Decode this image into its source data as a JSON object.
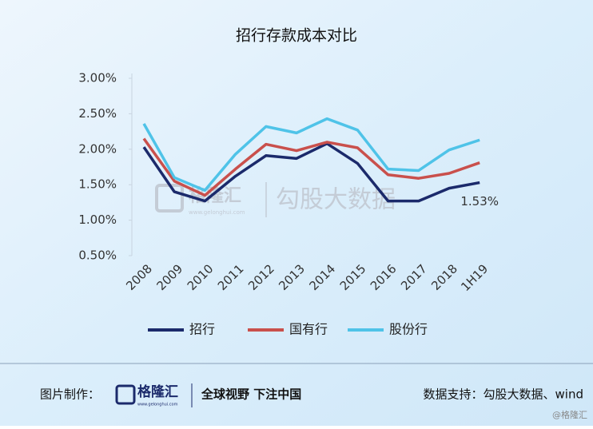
{
  "chart_data": {
    "type": "line",
    "title": "招行存款成本对比",
    "categories": [
      "2008",
      "2009",
      "2010",
      "2011",
      "2012",
      "2013",
      "2014",
      "2015",
      "2016",
      "2017",
      "2018",
      "1H19"
    ],
    "series": [
      {
        "name": "招行",
        "color": "#1b2a6b",
        "values": [
          2.03,
          1.4,
          1.27,
          1.62,
          1.91,
          1.87,
          2.08,
          1.8,
          1.27,
          1.27,
          1.45,
          1.53
        ],
        "value_labels": [
          null,
          null,
          null,
          null,
          null,
          null,
          null,
          null,
          null,
          null,
          null,
          "1.53%"
        ]
      },
      {
        "name": "国有行",
        "color": "#c9504c",
        "values": [
          2.15,
          1.55,
          1.35,
          1.72,
          2.07,
          1.98,
          2.1,
          2.02,
          1.64,
          1.59,
          1.66,
          1.81
        ]
      },
      {
        "name": "股份行",
        "color": "#4fc3e8",
        "values": [
          2.36,
          1.6,
          1.42,
          1.93,
          2.32,
          2.23,
          2.43,
          2.27,
          1.72,
          1.7,
          1.99,
          2.13
        ]
      }
    ],
    "ylim": [
      0.5,
      3.0
    ],
    "yticks": [
      {
        "value": 0.5,
        "label": "0.50%"
      },
      {
        "value": 1.0,
        "label": "1.00%"
      },
      {
        "value": 1.5,
        "label": "1.50%"
      },
      {
        "value": 2.0,
        "label": "2.00%"
      },
      {
        "value": 2.5,
        "label": "2.50%"
      },
      {
        "value": 3.0,
        "label": "3.00%"
      }
    ],
    "grid": false,
    "legend": "bottom"
  },
  "watermark": {
    "brand": "格隆汇",
    "url": "www.gelonghui.com",
    "text": "勾股大数据"
  },
  "footer": {
    "made_by": "图片制作：",
    "brand": "格隆汇",
    "url": "www.gelonghui.com",
    "slogan": "全球视野 下注中国",
    "source": "数据支持：勾股大数据、wind",
    "credit": "@格隆汇"
  }
}
